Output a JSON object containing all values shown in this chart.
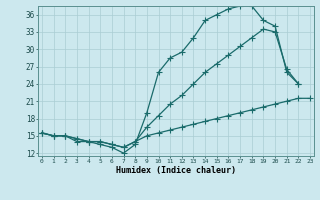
{
  "bg_color": "#cce8ee",
  "grid_color": "#aacdd4",
  "line_color": "#1a6b6b",
  "xlabel": "Humidex (Indice chaleur)",
  "yticks": [
    12,
    15,
    18,
    21,
    24,
    27,
    30,
    33,
    36
  ],
  "xticks": [
    0,
    1,
    2,
    3,
    4,
    5,
    6,
    7,
    8,
    9,
    10,
    11,
    12,
    13,
    14,
    15,
    16,
    17,
    18,
    19,
    20,
    21,
    22,
    23
  ],
  "xlim": [
    -0.3,
    23.3
  ],
  "ylim": [
    11.5,
    37.5
  ],
  "line1_x": [
    0,
    1,
    2,
    3,
    4,
    5,
    6,
    7,
    8,
    9,
    10,
    11,
    12,
    13,
    14,
    15,
    16,
    17,
    18,
    19,
    20,
    21,
    22
  ],
  "line1_y": [
    15.5,
    15.0,
    15.0,
    14.0,
    14.0,
    13.5,
    13.0,
    12.0,
    13.5,
    19.0,
    26.0,
    28.5,
    29.5,
    32.0,
    35.0,
    36.0,
    37.0,
    37.5,
    37.5,
    35.0,
    34.0,
    26.0,
    24.0
  ],
  "line2_x": [
    0,
    1,
    2,
    3,
    4,
    5,
    6,
    7,
    8,
    9,
    10,
    11,
    12,
    13,
    14,
    15,
    16,
    17,
    18,
    19,
    20,
    21,
    22
  ],
  "line2_y": [
    15.5,
    15.0,
    15.0,
    14.5,
    14.0,
    14.0,
    13.5,
    13.0,
    14.0,
    16.5,
    18.5,
    20.5,
    22.0,
    24.0,
    26.0,
    27.5,
    29.0,
    30.5,
    32.0,
    33.5,
    33.0,
    26.5,
    24.0
  ],
  "line3_x": [
    0,
    1,
    2,
    3,
    4,
    5,
    6,
    7,
    8,
    9,
    10,
    11,
    12,
    13,
    14,
    15,
    16,
    17,
    18,
    19,
    20,
    21,
    22,
    23
  ],
  "line3_y": [
    15.5,
    15.0,
    15.0,
    14.5,
    14.0,
    14.0,
    13.5,
    13.0,
    14.0,
    15.0,
    15.5,
    16.0,
    16.5,
    17.0,
    17.5,
    18.0,
    18.5,
    19.0,
    19.5,
    20.0,
    20.5,
    21.0,
    21.5,
    21.5
  ]
}
